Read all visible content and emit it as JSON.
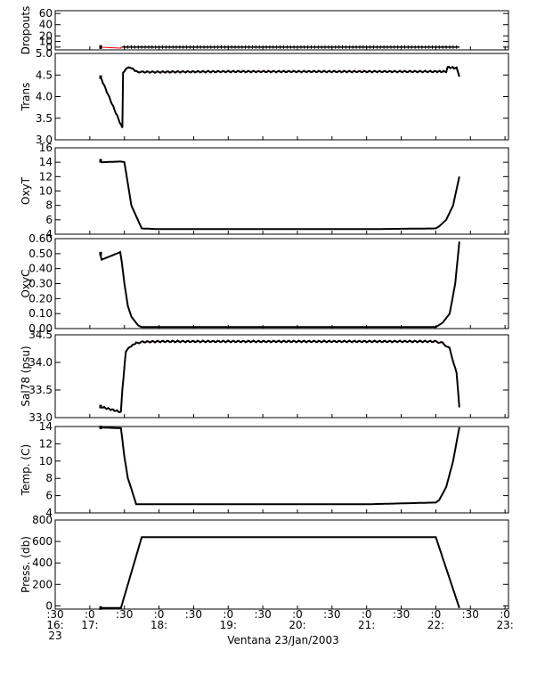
{
  "figure": {
    "xlabel": "Ventana 23/Jan/2003",
    "x_ticks": [
      {
        "t": 16.5,
        "lines": [
          ":30",
          "16:",
          "23"
        ]
      },
      {
        "t": 17.0,
        "lines": [
          ":0",
          "17:",
          ""
        ]
      },
      {
        "t": 17.5,
        "lines": [
          ":30",
          "",
          ""
        ]
      },
      {
        "t": 18.0,
        "lines": [
          ":0",
          "18:",
          ""
        ]
      },
      {
        "t": 18.5,
        "lines": [
          ":30",
          "",
          ""
        ]
      },
      {
        "t": 19.0,
        "lines": [
          ":0",
          "19:",
          ""
        ]
      },
      {
        "t": 19.5,
        "lines": [
          ":30",
          "",
          ""
        ]
      },
      {
        "t": 20.0,
        "lines": [
          ":0",
          "20:",
          ""
        ]
      },
      {
        "t": 20.5,
        "lines": [
          ":30",
          "",
          ""
        ]
      },
      {
        "t": 21.0,
        "lines": [
          ":0",
          "21:",
          ""
        ]
      },
      {
        "t": 21.5,
        "lines": [
          ":30",
          "",
          ""
        ]
      },
      {
        "t": 22.0,
        "lines": [
          ":0",
          "22:",
          ""
        ]
      },
      {
        "t": 22.5,
        "lines": [
          ":30",
          "",
          ""
        ]
      },
      {
        "t": 23.0,
        "lines": [
          ":0",
          "23:",
          ""
        ]
      }
    ],
    "xlim": [
      16.5,
      23.05
    ],
    "colors": {
      "data": "#000000",
      "connector": "#ff0000"
    }
  },
  "chart_data": [
    {
      "type": "line",
      "ylabel": "Dropouts",
      "ylim": [
        -5,
        65
      ],
      "yticks": [
        0,
        10,
        20,
        40,
        60
      ],
      "series": [
        {
          "x": [
            17.15,
            17.45,
            17.45,
            22.34
          ],
          "y": [
            0,
            -2,
            0,
            0
          ]
        }
      ]
    },
    {
      "type": "line",
      "ylabel": "Trans",
      "ylim": [
        3.0,
        5.0
      ],
      "yticks": [
        3.0,
        3.5,
        4.0,
        4.5,
        5.0
      ],
      "series": [
        {
          "x": [
            17.15,
            17.17,
            17.47,
            17.48,
            17.52,
            17.6,
            17.67,
            17.75,
            18.0,
            19.0,
            20.0,
            21.0,
            22.0,
            22.15,
            22.17,
            22.3,
            22.34
          ],
          "y": [
            4.45,
            4.4,
            3.27,
            4.55,
            4.65,
            4.67,
            4.58,
            4.57,
            4.57,
            4.58,
            4.58,
            4.58,
            4.58,
            4.58,
            4.68,
            4.66,
            4.48
          ]
        }
      ]
    },
    {
      "type": "line",
      "ylabel": "OxyT",
      "ylim": [
        4,
        16
      ],
      "yticks": [
        4,
        6,
        8,
        10,
        12,
        14,
        16
      ],
      "series": [
        {
          "x": [
            17.15,
            17.17,
            17.45,
            17.5,
            17.55,
            17.6,
            17.67,
            17.75,
            18.0,
            19.0,
            20.0,
            21.0,
            22.0,
            22.05,
            22.15,
            22.25,
            22.34
          ],
          "y": [
            14.2,
            14.0,
            14.1,
            14.0,
            11.0,
            8.0,
            6.5,
            4.8,
            4.7,
            4.7,
            4.7,
            4.7,
            4.8,
            5.1,
            6.0,
            8.0,
            12.0
          ]
        }
      ]
    },
    {
      "type": "line",
      "ylabel": "OxyC",
      "ylim": [
        0.0,
        0.6
      ],
      "yticks": [
        0.0,
        0.1,
        0.2,
        0.3,
        0.4,
        0.5,
        0.6
      ],
      "series": [
        {
          "x": [
            17.15,
            17.17,
            17.44,
            17.46,
            17.5,
            17.55,
            17.6,
            17.7,
            17.75,
            18.0,
            19.0,
            20.0,
            21.0,
            22.0,
            22.1,
            22.2,
            22.28,
            22.34
          ],
          "y": [
            0.5,
            0.46,
            0.51,
            0.45,
            0.3,
            0.15,
            0.08,
            0.02,
            0.01,
            0.01,
            0.01,
            0.01,
            0.01,
            0.01,
            0.04,
            0.1,
            0.3,
            0.58
          ]
        }
      ]
    },
    {
      "type": "line",
      "ylabel": "Sal78 (psu)",
      "ylim": [
        33.0,
        34.5
      ],
      "yticks": [
        33.0,
        33.5,
        34.0,
        34.5
      ],
      "series": [
        {
          "x": [
            17.15,
            17.45,
            17.47,
            17.52,
            17.6,
            17.67,
            17.75,
            18.0,
            19.0,
            20.0,
            21.0,
            22.0,
            22.1,
            22.2,
            22.3,
            22.34
          ],
          "y": [
            33.2,
            33.1,
            33.5,
            34.2,
            34.3,
            34.35,
            34.37,
            34.38,
            34.38,
            34.38,
            34.38,
            34.38,
            34.35,
            34.25,
            33.8,
            33.2
          ]
        }
      ]
    },
    {
      "type": "line",
      "ylabel": "Temp. (C)",
      "ylim": [
        4,
        14
      ],
      "yticks": [
        4,
        6,
        8,
        10,
        12,
        14
      ],
      "series": [
        {
          "x": [
            17.15,
            17.45,
            17.47,
            17.5,
            17.55,
            17.6,
            17.67,
            17.75,
            18.0,
            19.0,
            20.0,
            21.0,
            22.0,
            22.05,
            22.15,
            22.25,
            22.34
          ],
          "y": [
            13.9,
            13.8,
            12.5,
            10.5,
            8.0,
            6.8,
            5.0,
            5.0,
            5.0,
            5.0,
            5.0,
            5.0,
            5.2,
            5.5,
            7.0,
            10.0,
            13.9
          ]
        }
      ]
    },
    {
      "type": "line",
      "ylabel": "Press. (db)",
      "ylim": [
        -30,
        800
      ],
      "yticks": [
        0,
        200,
        400,
        600,
        800
      ],
      "series": [
        {
          "x": [
            17.15,
            17.45,
            17.75,
            22.0,
            22.34
          ],
          "y": [
            -20,
            -20,
            640,
            640,
            -20
          ]
        }
      ]
    }
  ]
}
